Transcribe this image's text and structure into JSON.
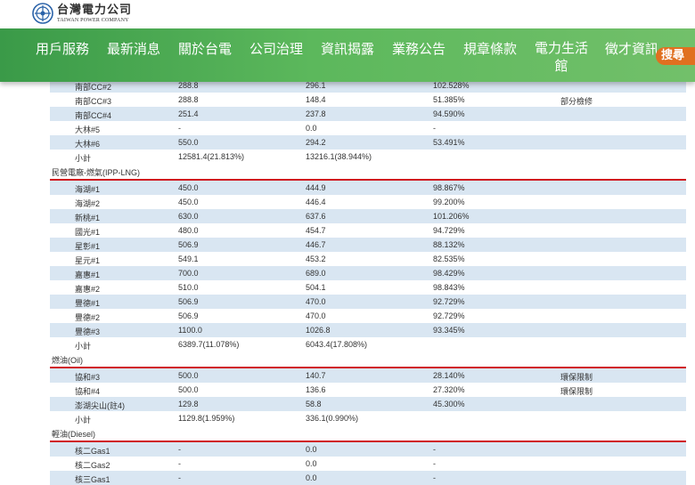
{
  "header": {
    "logo_cn": "台灣電力公司",
    "logo_en": "TAIWAN POWER COMPANY"
  },
  "nav": {
    "items": [
      "用戶服務",
      "最新消息",
      "關於台電",
      "公司治理",
      "資訊揭露",
      "業務公告",
      "規章條款",
      "電力生活館",
      "徵才資訊"
    ],
    "search_label": "搜尋"
  },
  "colors": {
    "nav_green": "#4caf50",
    "section_rule": "#d0161f",
    "row_shade": "#d9e6f2",
    "search_orange": "#e07020"
  },
  "rows_top": [
    {
      "name": "南部CC#2",
      "cap": "288.8",
      "gen": "296.1",
      "pct": "102.528%",
      "note": "",
      "shade": true
    },
    {
      "name": "南部CC#3",
      "cap": "288.8",
      "gen": "148.4",
      "pct": "51.385%",
      "note": "部分檢修",
      "shade": false
    },
    {
      "name": "南部CC#4",
      "cap": "251.4",
      "gen": "237.8",
      "pct": "94.590%",
      "note": "",
      "shade": true
    },
    {
      "name": "大林#5",
      "cap": "-",
      "gen": "0.0",
      "pct": "-",
      "note": "",
      "shade": false
    },
    {
      "name": "大林#6",
      "cap": "550.0",
      "gen": "294.2",
      "pct": "53.491%",
      "note": "",
      "shade": true
    },
    {
      "name": "小計",
      "cap": "12581.4(21.813%)",
      "gen": "13216.1(38.944%)",
      "pct": "",
      "note": "",
      "shade": false
    }
  ],
  "section_lng": "民營電廠-燃氣(IPP-LNG)",
  "rows_lng": [
    {
      "name": "海湖#1",
      "cap": "450.0",
      "gen": "444.9",
      "pct": "98.867%",
      "note": "",
      "shade": true
    },
    {
      "name": "海湖#2",
      "cap": "450.0",
      "gen": "446.4",
      "pct": "99.200%",
      "note": "",
      "shade": false
    },
    {
      "name": "新桃#1",
      "cap": "630.0",
      "gen": "637.6",
      "pct": "101.206%",
      "note": "",
      "shade": true
    },
    {
      "name": "國光#1",
      "cap": "480.0",
      "gen": "454.7",
      "pct": "94.729%",
      "note": "",
      "shade": false
    },
    {
      "name": "星彰#1",
      "cap": "506.9",
      "gen": "446.7",
      "pct": "88.132%",
      "note": "",
      "shade": true
    },
    {
      "name": "星元#1",
      "cap": "549.1",
      "gen": "453.2",
      "pct": "82.535%",
      "note": "",
      "shade": false
    },
    {
      "name": "嘉惠#1",
      "cap": "700.0",
      "gen": "689.0",
      "pct": "98.429%",
      "note": "",
      "shade": true
    },
    {
      "name": "嘉惠#2",
      "cap": "510.0",
      "gen": "504.1",
      "pct": "98.843%",
      "note": "",
      "shade": false
    },
    {
      "name": "豐德#1",
      "cap": "506.9",
      "gen": "470.0",
      "pct": "92.729%",
      "note": "",
      "shade": true
    },
    {
      "name": "豐德#2",
      "cap": "506.9",
      "gen": "470.0",
      "pct": "92.729%",
      "note": "",
      "shade": false
    },
    {
      "name": "豐德#3",
      "cap": "1100.0",
      "gen": "1026.8",
      "pct": "93.345%",
      "note": "",
      "shade": true
    },
    {
      "name": "小計",
      "cap": "6389.7(11.078%)",
      "gen": "6043.4(17.808%)",
      "pct": "",
      "note": "",
      "shade": false
    }
  ],
  "section_oil": "燃油(Oil)",
  "rows_oil": [
    {
      "name": "協和#3",
      "cap": "500.0",
      "gen": "140.7",
      "pct": "28.140%",
      "note": "環保限制",
      "shade": true
    },
    {
      "name": "協和#4",
      "cap": "500.0",
      "gen": "136.6",
      "pct": "27.320%",
      "note": "環保限制",
      "shade": false
    },
    {
      "name": "澎湖尖山(註4)",
      "cap": "129.8",
      "gen": "58.8",
      "pct": "45.300%",
      "note": "",
      "shade": true
    },
    {
      "name": "小計",
      "cap": "1129.8(1.959%)",
      "gen": "336.1(0.990%)",
      "pct": "",
      "note": "",
      "shade": false
    }
  ],
  "section_diesel": "輕油(Diesel)",
  "rows_diesel": [
    {
      "name": "核二Gas1",
      "cap": "-",
      "gen": "0.0",
      "pct": "-",
      "note": "",
      "shade": true
    },
    {
      "name": "核二Gas2",
      "cap": "-",
      "gen": "0.0",
      "pct": "-",
      "note": "",
      "shade": false
    },
    {
      "name": "核三Gas1",
      "cap": "-",
      "gen": "0.0",
      "pct": "-",
      "note": "",
      "shade": true
    }
  ]
}
